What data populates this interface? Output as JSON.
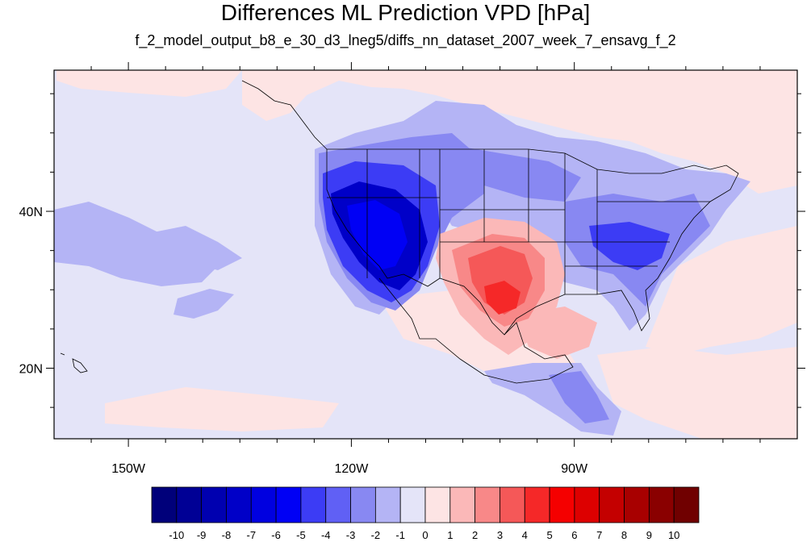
{
  "title": "Differences ML Prediction VPD [hPa]",
  "subtitle": "f_2_model_output_b8_e_30_d3_lneg5/diffs_nn_dataset_2007_week_7_ensavg_f_2",
  "lat_labels": [
    {
      "value": 40,
      "label": "40N"
    },
    {
      "value": 20,
      "label": "20N"
    }
  ],
  "lon_labels": [
    {
      "value": -150,
      "label": "150W"
    },
    {
      "value": -120,
      "label": "120W"
    },
    {
      "value": -90,
      "label": "90W"
    }
  ],
  "extent": {
    "lon_min": -160,
    "lon_max": -60,
    "lat_min": 11,
    "lat_max": 58
  },
  "colorbar": {
    "labels": [
      "-10",
      "-9",
      "-8",
      "-7",
      "-6",
      "-5",
      "-4",
      "-3",
      "-2",
      "-1",
      "0",
      "1",
      "2",
      "3",
      "4",
      "5",
      "6",
      "7",
      "8",
      "9",
      "10"
    ],
    "colors": [
      "#00007a",
      "#000095",
      "#0000b0",
      "#0000c8",
      "#0000e0",
      "#0000f5",
      "#3c3cf5",
      "#6060f5",
      "#8888f2",
      "#b4b4f5",
      "#e4e4f8",
      "#fde4e4",
      "#fbb8b8",
      "#f88888",
      "#f55858",
      "#f52828",
      "#f50000",
      "#dd0000",
      "#c40000",
      "#a80000",
      "#8a0000",
      "#700000"
    ]
  },
  "map_layers": {
    "ocean": "#e4e4f8",
    "light_blue": "#b4b4f5",
    "medium_blue": "#8888f2",
    "strong_blue": "#3c3cf5",
    "deep_blue": "#0000c8",
    "light_red": "#fde4e4",
    "medium_red": "#fbb8b8",
    "strong_red": "#f55858",
    "deep_red": "#f50000"
  }
}
